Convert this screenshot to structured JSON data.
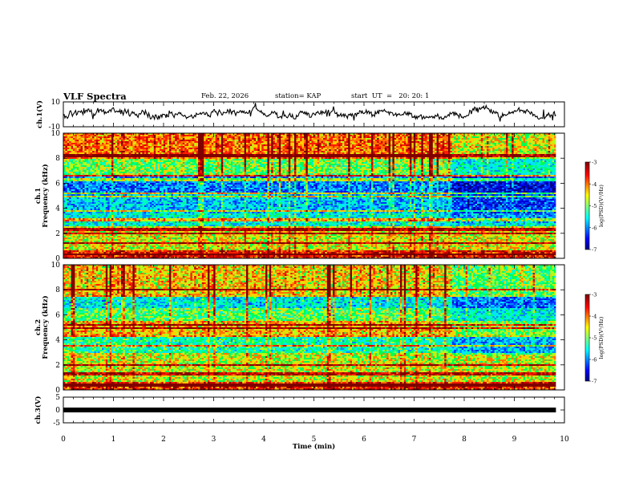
{
  "header": {
    "title": "VLF Spectra",
    "date": "Feb. 22, 2026",
    "station": "station= KAP",
    "start": "start  UT  =   20: 20: 1"
  },
  "chart_data": [
    {
      "type": "line",
      "id": "ch1-waveform",
      "ylabel": "ch.1(V)",
      "ylim": [
        -10,
        10
      ],
      "yticks": [
        "10",
        "-10"
      ],
      "xlim": [
        0,
        10
      ],
      "x_end": 9.83,
      "note": "dense noisy voltage trace centered near 0 V"
    },
    {
      "type": "heatmap",
      "id": "ch1-spectrogram",
      "channel_label": "ch.1",
      "ylabel": "Frequency (kHz)",
      "ylim": [
        0,
        10
      ],
      "yticks": [
        "0",
        "2",
        "4",
        "6",
        "8",
        "10"
      ],
      "xlim": [
        0,
        10
      ],
      "x_end": 9.83,
      "colorbar": {
        "label": "log(PSD)(V²/Hz)",
        "range": [
          -7,
          -3
        ],
        "ticks": [
          "-3",
          "-4",
          "-5",
          "-6",
          "-7"
        ]
      },
      "bands_khz": [
        {
          "f0": 0.0,
          "f1": 0.7,
          "level": -3.6
        },
        {
          "f0": 0.7,
          "f1": 2.6,
          "level": -4.5
        },
        {
          "f0": 2.6,
          "f1": 3.6,
          "level": -5.5
        },
        {
          "f0": 3.6,
          "f1": 5.3,
          "level": -5.8
        },
        {
          "f0": 5.3,
          "f1": 6.5,
          "level": -6.1
        },
        {
          "f0": 6.5,
          "f1": 8.0,
          "level": -4.9
        },
        {
          "f0": 8.0,
          "f1": 10.0,
          "level": -4.0
        }
      ],
      "lines_khz": [
        0.3,
        1.2,
        2.0,
        2.3,
        3.1,
        3.8,
        4.9,
        5.2,
        6.3,
        6.6,
        8.2
      ],
      "quiet_after_min": 7.75
    },
    {
      "type": "heatmap",
      "id": "ch2-spectrogram",
      "channel_label": "ch.2",
      "ylabel": "Frequency (kHz)",
      "ylim": [
        0,
        10
      ],
      "yticks": [
        "0",
        "2",
        "4",
        "6",
        "8",
        "10"
      ],
      "xlim": [
        0,
        10
      ],
      "x_end": 9.83,
      "colorbar": {
        "label": "log(PSD)(V²/Hz)",
        "range": [
          -7,
          -3
        ],
        "ticks": [
          "-3",
          "-4",
          "-5",
          "-6",
          "-7"
        ]
      },
      "bands_khz": [
        {
          "f0": 0.0,
          "f1": 0.7,
          "level": -3.7
        },
        {
          "f0": 0.7,
          "f1": 3.0,
          "level": -4.6
        },
        {
          "f0": 3.0,
          "f1": 4.3,
          "level": -5.3
        },
        {
          "f0": 4.3,
          "f1": 5.5,
          "level": -4.3
        },
        {
          "f0": 5.5,
          "f1": 6.5,
          "level": -5.0
        },
        {
          "f0": 6.5,
          "f1": 7.6,
          "level": -5.6
        },
        {
          "f0": 7.6,
          "f1": 10.0,
          "level": -4.4
        }
      ],
      "lines_khz": [
        0.4,
        1.3,
        2.0,
        3.5,
        4.3,
        4.9,
        5.2,
        7.5,
        8.0
      ],
      "quiet_after_min": 7.75
    },
    {
      "type": "line",
      "id": "ch3-trace",
      "ylabel": "ch.3(V)",
      "ylim": [
        -5,
        5
      ],
      "yticks": [
        "5",
        "0",
        "-5"
      ],
      "xlim": [
        0,
        10
      ],
      "x_end": 9.83,
      "value_v": 0,
      "xlabel": "Time (min)",
      "xticks": [
        "0",
        "1",
        "2",
        "3",
        "4",
        "5",
        "6",
        "7",
        "8",
        "9",
        "10"
      ]
    }
  ]
}
